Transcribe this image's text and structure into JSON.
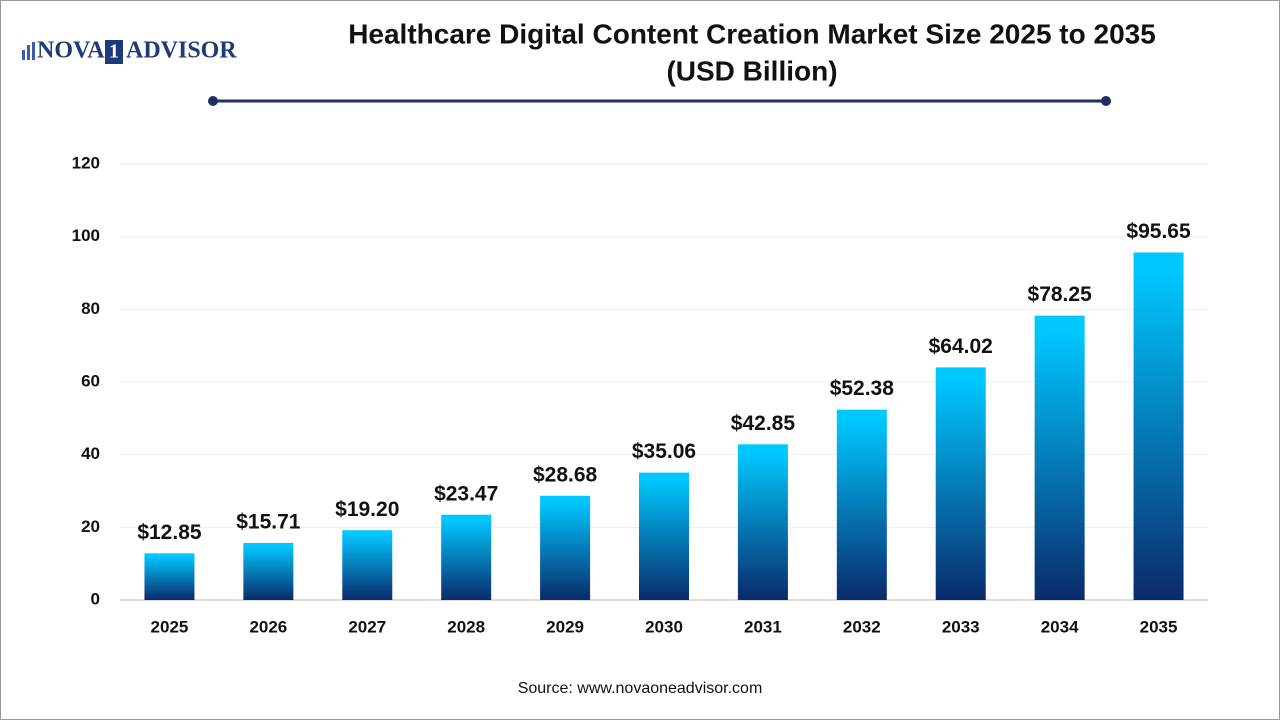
{
  "logo": {
    "left": "NOVA",
    "mark": "1",
    "right": "ADVISOR"
  },
  "chart_data": {
    "type": "bar",
    "title": "Healthcare Digital Content Creation Market Size 2025 to 2035",
    "subtitle": "(USD Billion)",
    "categories": [
      "2025",
      "2026",
      "2027",
      "2028",
      "2029",
      "2030",
      "2031",
      "2032",
      "2033",
      "2034",
      "2035"
    ],
    "values": [
      12.85,
      15.71,
      19.2,
      23.47,
      28.68,
      35.06,
      42.85,
      52.38,
      64.02,
      78.25,
      95.65
    ],
    "value_labels": [
      "$12.85",
      "$15.71",
      "$19.20",
      "$23.47",
      "$28.68",
      "$35.06",
      "$42.85",
      "$52.38",
      "$64.02",
      "$78.25",
      "$95.65"
    ],
    "color": [
      "#00c8ff",
      "#0a2a6b"
    ],
    "ylim": [
      0,
      120
    ],
    "yticks": [
      0,
      20,
      40,
      60,
      80,
      100,
      120
    ],
    "grid": true,
    "source": "Source: www.novaoneadvisor.com"
  }
}
